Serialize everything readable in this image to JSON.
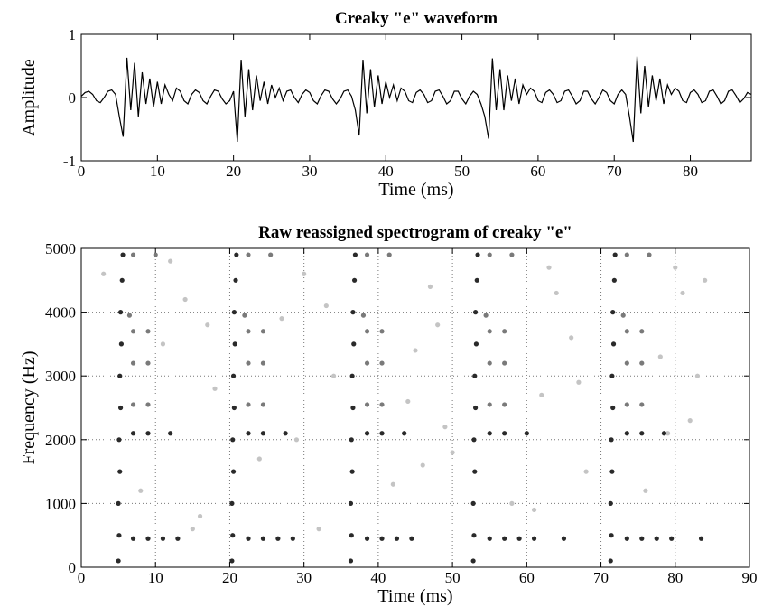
{
  "chart_data": [
    {
      "type": "line",
      "title": "Creaky \"e\" waveform",
      "xlabel": "Time (ms)",
      "ylabel": "Amplitude",
      "xlim": [
        0,
        88
      ],
      "xticks": [
        0,
        10,
        20,
        30,
        40,
        50,
        60,
        70,
        80
      ],
      "ylim": [
        -1,
        1
      ],
      "yticks": [
        -1,
        0,
        1
      ],
      "grid": false,
      "color": "#000000",
      "x": [
        0,
        0.5,
        1,
        1.5,
        2,
        2.5,
        3,
        3.5,
        4,
        4.5,
        5,
        5.5,
        6,
        6.5,
        7,
        7.5,
        8,
        8.5,
        9,
        9.5,
        10,
        10.5,
        11,
        11.5,
        12,
        12.5,
        13,
        13.5,
        14,
        14.5,
        15,
        15.5,
        16,
        16.5,
        17,
        17.5,
        18,
        18.5,
        19,
        19.5,
        20,
        20.5,
        21,
        21.5,
        22,
        22.5,
        23,
        23.5,
        24,
        24.5,
        25,
        25.5,
        26,
        26.5,
        27,
        27.5,
        28,
        28.5,
        29,
        29.5,
        30,
        30.5,
        31,
        31.5,
        32,
        32.5,
        33,
        33.5,
        34,
        34.5,
        35,
        35.5,
        36,
        36.5,
        37,
        37.5,
        38,
        38.5,
        39,
        39.5,
        40,
        40.5,
        41,
        41.5,
        42,
        42.5,
        43,
        43.5,
        44,
        44.5,
        45,
        45.5,
        46,
        46.5,
        47,
        47.5,
        48,
        48.5,
        49,
        49.5,
        50,
        50.5,
        51,
        51.5,
        52,
        52.5,
        53,
        53.5,
        54,
        54.5,
        55,
        55.5,
        56,
        56.5,
        57,
        57.5,
        58,
        58.5,
        59,
        59.5,
        60,
        60.5,
        61,
        61.5,
        62,
        62.5,
        63,
        63.5,
        64,
        64.5,
        65,
        65.5,
        66,
        66.5,
        67,
        67.5,
        68,
        68.5,
        69,
        69.5,
        70,
        70.5,
        71,
        71.5,
        72,
        72.5,
        73,
        73.5,
        74,
        74.5,
        75,
        75.5,
        76,
        76.5,
        77,
        77.5,
        78,
        78.5,
        79,
        79.5,
        80,
        80.5,
        81,
        81.5,
        82,
        82.5,
        83,
        83.5,
        84,
        84.5,
        85,
        85.5,
        86,
        86.5,
        87,
        87.5,
        88
      ],
      "values": [
        0.02,
        0.08,
        0.1,
        0.05,
        -0.05,
        -0.08,
        0,
        0.1,
        0.12,
        0.05,
        -0.3,
        -0.62,
        0.63,
        -0.2,
        0.55,
        -0.3,
        0.4,
        -0.1,
        0.3,
        -0.15,
        0.25,
        -0.1,
        0.2,
        0.05,
        -0.05,
        0.15,
        0.1,
        -0.05,
        -0.1,
        0.05,
        0.12,
        0.08,
        -0.05,
        -0.1,
        0.02,
        0.12,
        0.1,
        -0.02,
        -0.1,
        -0.05,
        0.1,
        -0.7,
        0.6,
        -0.3,
        0.45,
        -0.2,
        0.35,
        -0.05,
        0.25,
        -0.1,
        0.2,
        0,
        0.15,
        -0.05,
        0.1,
        0.12,
        0,
        -0.08,
        0.05,
        0.12,
        0.08,
        -0.05,
        -0.1,
        0.03,
        0.12,
        0.1,
        -0.02,
        -0.1,
        -0.02,
        0.1,
        0.12,
        0.02,
        -0.2,
        -0.6,
        0.6,
        -0.25,
        0.45,
        -0.15,
        0.35,
        -0.1,
        0.25,
        0,
        0.2,
        -0.05,
        0.15,
        0.1,
        -0.05,
        -0.08,
        0.08,
        0.12,
        0.05,
        -0.08,
        -0.05,
        0.1,
        0.12,
        0.02,
        -0.1,
        -0.05,
        0.1,
        0.1,
        -0.02,
        -0.1,
        0.02,
        0.1,
        0.05,
        -0.1,
        -0.3,
        -0.65,
        0.62,
        -0.2,
        0.45,
        -0.2,
        0.35,
        -0.05,
        0.3,
        -0.1,
        0.2,
        0.05,
        0.15,
        0.1,
        -0.05,
        -0.08,
        0.08,
        0.12,
        0.05,
        -0.08,
        -0.05,
        0.1,
        0.12,
        0.02,
        -0.1,
        -0.05,
        0.1,
        0.1,
        -0.02,
        -0.1,
        0,
        0.12,
        0.08,
        -0.05,
        -0.1,
        0.05,
        0.12,
        0.05,
        -0.3,
        -0.7,
        0.65,
        -0.25,
        0.5,
        -0.15,
        0.35,
        -0.05,
        0.3,
        -0.1,
        0.2,
        0.05,
        0.15,
        0.1,
        -0.05,
        -0.08,
        0.08,
        0.12,
        0.05,
        -0.08,
        -0.05,
        0.1,
        0.12,
        0.02,
        -0.1,
        -0.05,
        0.1,
        0.12,
        0.03,
        -0.08,
        -0.02,
        0.08,
        0.05
      ]
    },
    {
      "type": "scatter",
      "title": "Raw reassigned spectrogram of creaky \"e\"",
      "xlabel": "Time (ms)",
      "ylabel": "Frequency (Hz)",
      "xlim": [
        0,
        90
      ],
      "xticks": [
        0,
        10,
        20,
        30,
        40,
        50,
        60,
        70,
        80,
        90
      ],
      "ylim": [
        0,
        5000
      ],
      "yticks": [
        0,
        1000,
        2000,
        3000,
        4000,
        5000
      ],
      "grid": true,
      "series": [
        {
          "color": "#c4c4c4",
          "x": [
            3,
            8,
            11,
            14,
            16,
            18,
            24,
            27,
            30,
            32,
            34,
            42,
            45,
            47,
            49,
            50,
            58,
            62,
            64,
            66,
            68,
            76,
            78,
            80,
            82,
            84,
            12,
            15,
            29,
            33,
            44,
            48,
            61,
            63,
            67,
            79,
            81,
            17,
            46,
            83
          ],
          "values": [
            4600,
            1200,
            3500,
            4200,
            800,
            2800,
            1700,
            3900,
            4600,
            600,
            3000,
            1300,
            3400,
            4400,
            2200,
            1800,
            1000,
            2700,
            4300,
            3600,
            1500,
            1200,
            3300,
            4700,
            2300,
            4500,
            4800,
            600,
            2000,
            4100,
            2600,
            3800,
            900,
            4700,
            2900,
            2100,
            4300,
            3800,
            1600,
            3000
          ]
        },
        {
          "color": "#7a7a7a",
          "x": [
            7,
            9,
            7,
            9,
            7,
            9,
            6.5,
            7,
            10,
            22.5,
            24.5,
            22.5,
            24.5,
            22.5,
            24.5,
            22,
            22.5,
            25.5,
            38.5,
            40.5,
            38.5,
            40.5,
            38.5,
            40.5,
            38,
            38.5,
            41.5,
            55,
            57,
            55,
            57,
            55,
            57,
            54.5,
            55,
            58,
            73.5,
            75.5,
            73.5,
            75.5,
            73.5,
            75.5,
            73,
            73.5,
            76.5
          ],
          "values": [
            2550,
            2550,
            3200,
            3200,
            3700,
            3700,
            3950,
            4900,
            4900,
            2550,
            2550,
            3200,
            3200,
            3700,
            3700,
            3950,
            4900,
            4900,
            2550,
            2550,
            3200,
            3200,
            3700,
            3700,
            3950,
            4900,
            4900,
            2550,
            2550,
            3200,
            3200,
            3700,
            3700,
            3950,
            4900,
            4900,
            2550,
            2550,
            3200,
            3200,
            3700,
            3700,
            3950,
            4900,
            4900
          ]
        },
        {
          "color": "#2a2a2a",
          "x": [
            5.0,
            5.1,
            5.0,
            5.2,
            5.1,
            5.3,
            5.2,
            5.4,
            5.3,
            5.5,
            5.6,
            20.3,
            20.4,
            20.3,
            20.5,
            20.4,
            20.6,
            20.5,
            20.7,
            20.6,
            20.8,
            20.9,
            36.3,
            36.4,
            36.3,
            36.5,
            36.4,
            36.6,
            36.5,
            36.7,
            36.6,
            36.8,
            36.9,
            52.8,
            52.9,
            52.8,
            53.0,
            52.9,
            53.1,
            53.0,
            53.2,
            53.1,
            53.3,
            53.4,
            71.3,
            71.4,
            71.3,
            71.5,
            71.4,
            71.6,
            71.5,
            71.7,
            71.6,
            71.8,
            71.9,
            7,
            9,
            11,
            13,
            22.5,
            24.5,
            26.5,
            28.5,
            38.5,
            40.5,
            42.5,
            44.5,
            55,
            57,
            59,
            61,
            65,
            73.5,
            75.5,
            77.5,
            79.5,
            83.5,
            7,
            9,
            12,
            22.5,
            24.5,
            27.5,
            38.5,
            40.5,
            43.5,
            55,
            57,
            60,
            73.5,
            75.5,
            78.5
          ],
          "values": [
            100,
            500,
            1000,
            1500,
            2000,
            2500,
            3000,
            3500,
            4000,
            4500,
            4900,
            100,
            500,
            1000,
            1500,
            2000,
            2500,
            3000,
            3500,
            4000,
            4500,
            4900,
            100,
            500,
            1000,
            1500,
            2000,
            2500,
            3000,
            3500,
            4000,
            4500,
            4900,
            100,
            500,
            1000,
            1500,
            2000,
            2500,
            3000,
            3500,
            4000,
            4500,
            4900,
            100,
            500,
            1000,
            1500,
            2000,
            2500,
            3000,
            3500,
            4000,
            4500,
            4900,
            450,
            450,
            450,
            450,
            450,
            450,
            450,
            450,
            450,
            450,
            450,
            450,
            450,
            450,
            450,
            450,
            450,
            450,
            450,
            450,
            450,
            450,
            2100,
            2100,
            2100,
            2100,
            2100,
            2100,
            2100,
            2100,
            2100,
            2100,
            2100,
            2100,
            2100,
            2100,
            2100
          ]
        }
      ]
    }
  ]
}
